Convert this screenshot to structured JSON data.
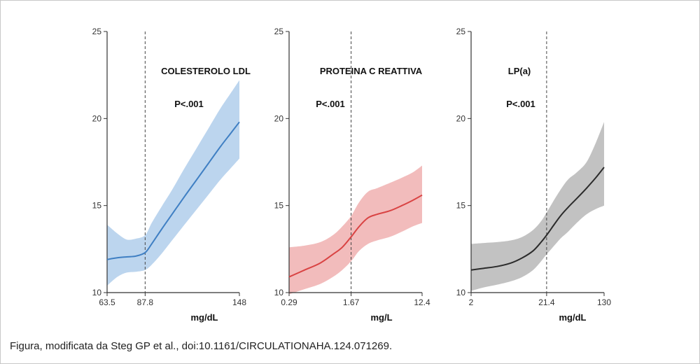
{
  "caption": "Figura, modificata da Steg GP et al., doi:10.1161/CIRCULATIONAHA.124.071269.",
  "chart_data": [
    {
      "type": "line",
      "title": "COLESTEROLO LDL",
      "annotation": "P<.001",
      "xlabel": "mg/dL",
      "ylabel": "",
      "ylim": [
        10,
        25
      ],
      "yticks": [
        10,
        15,
        20,
        25
      ],
      "x_scale": "linear",
      "xlim": [
        63.5,
        148
      ],
      "xticks": [
        63.5,
        87.8,
        148
      ],
      "xtick_labels": [
        "63.5",
        "87.8",
        "148"
      ],
      "reference_x": 87.8,
      "color": "#3f7fc3",
      "band_color": "#bcd5ee",
      "series": [
        {
          "x": [
            63.5,
            70,
            76,
            82,
            87.8,
            92,
            98,
            105,
            112,
            120,
            128,
            136,
            142,
            148
          ],
          "values": [
            11.9,
            12.0,
            12.05,
            12.1,
            12.3,
            12.8,
            13.6,
            14.5,
            15.4,
            16.4,
            17.4,
            18.4,
            19.1,
            19.8
          ],
          "lower": [
            10.4,
            10.9,
            11.15,
            11.2,
            11.3,
            11.6,
            12.2,
            13.0,
            13.8,
            14.7,
            15.6,
            16.5,
            17.1,
            17.7
          ],
          "upper": [
            13.9,
            13.4,
            13.05,
            13.1,
            13.3,
            14.0,
            14.9,
            15.9,
            17.0,
            18.2,
            19.4,
            20.6,
            21.4,
            22.2
          ]
        }
      ]
    },
    {
      "type": "line",
      "title": "PROTEINA C REATTIVA",
      "annotation": "P<.001",
      "xlabel": "mg/L",
      "ylabel": "",
      "ylim": [
        10,
        25
      ],
      "yticks": [
        10,
        15,
        20,
        25
      ],
      "x_scale": "log",
      "xlim": [
        0.29,
        12.4
      ],
      "xticks": [
        0.29,
        1.67,
        12.4
      ],
      "xtick_labels": [
        "0.29",
        "1.67",
        "12.4"
      ],
      "reference_x": 1.67,
      "color": "#d94343",
      "band_color": "#f2bcbc",
      "series": [
        {
          "x": [
            0.29,
            0.45,
            0.7,
            1.0,
            1.3,
            1.67,
            2.1,
            2.7,
            3.5,
            5.0,
            7.0,
            9.5,
            12.4
          ],
          "values": [
            10.9,
            11.3,
            11.7,
            12.2,
            12.6,
            13.2,
            13.8,
            14.3,
            14.5,
            14.7,
            15.0,
            15.3,
            15.6
          ],
          "lower": [
            9.9,
            10.2,
            10.5,
            10.9,
            11.3,
            11.8,
            12.4,
            12.8,
            13.0,
            13.2,
            13.5,
            13.8,
            14.0
          ],
          "upper": [
            12.6,
            12.7,
            12.9,
            13.3,
            13.8,
            14.4,
            15.2,
            15.8,
            16.0,
            16.3,
            16.6,
            16.9,
            17.3
          ]
        }
      ]
    },
    {
      "type": "line",
      "title": "LP(a)",
      "annotation": "P<.001",
      "xlabel": "mg/dL",
      "ylabel": "",
      "ylim": [
        10,
        25
      ],
      "yticks": [
        10,
        15,
        20,
        25
      ],
      "x_scale": "log",
      "xlim": [
        2,
        130
      ],
      "xticks": [
        2,
        21.4,
        130
      ],
      "xtick_labels": [
        "2",
        "21.4",
        "130"
      ],
      "reference_x": 21.4,
      "color": "#2b2b2b",
      "band_color": "#c2c2c2",
      "series": [
        {
          "x": [
            2,
            3,
            4.5,
            7,
            10,
            14,
            18,
            21.4,
            26,
            33,
            42,
            55,
            75,
            100,
            130
          ],
          "values": [
            11.3,
            11.4,
            11.5,
            11.7,
            12.0,
            12.4,
            12.9,
            13.3,
            13.8,
            14.4,
            14.9,
            15.4,
            16.0,
            16.6,
            17.2
          ],
          "lower": [
            10.1,
            10.3,
            10.45,
            10.65,
            10.9,
            11.3,
            11.8,
            12.2,
            12.6,
            13.1,
            13.5,
            14.0,
            14.5,
            14.8,
            15.0
          ],
          "upper": [
            12.8,
            12.85,
            12.9,
            13.0,
            13.2,
            13.6,
            14.1,
            14.6,
            15.2,
            15.9,
            16.5,
            16.9,
            17.5,
            18.6,
            19.8
          ]
        }
      ]
    }
  ]
}
